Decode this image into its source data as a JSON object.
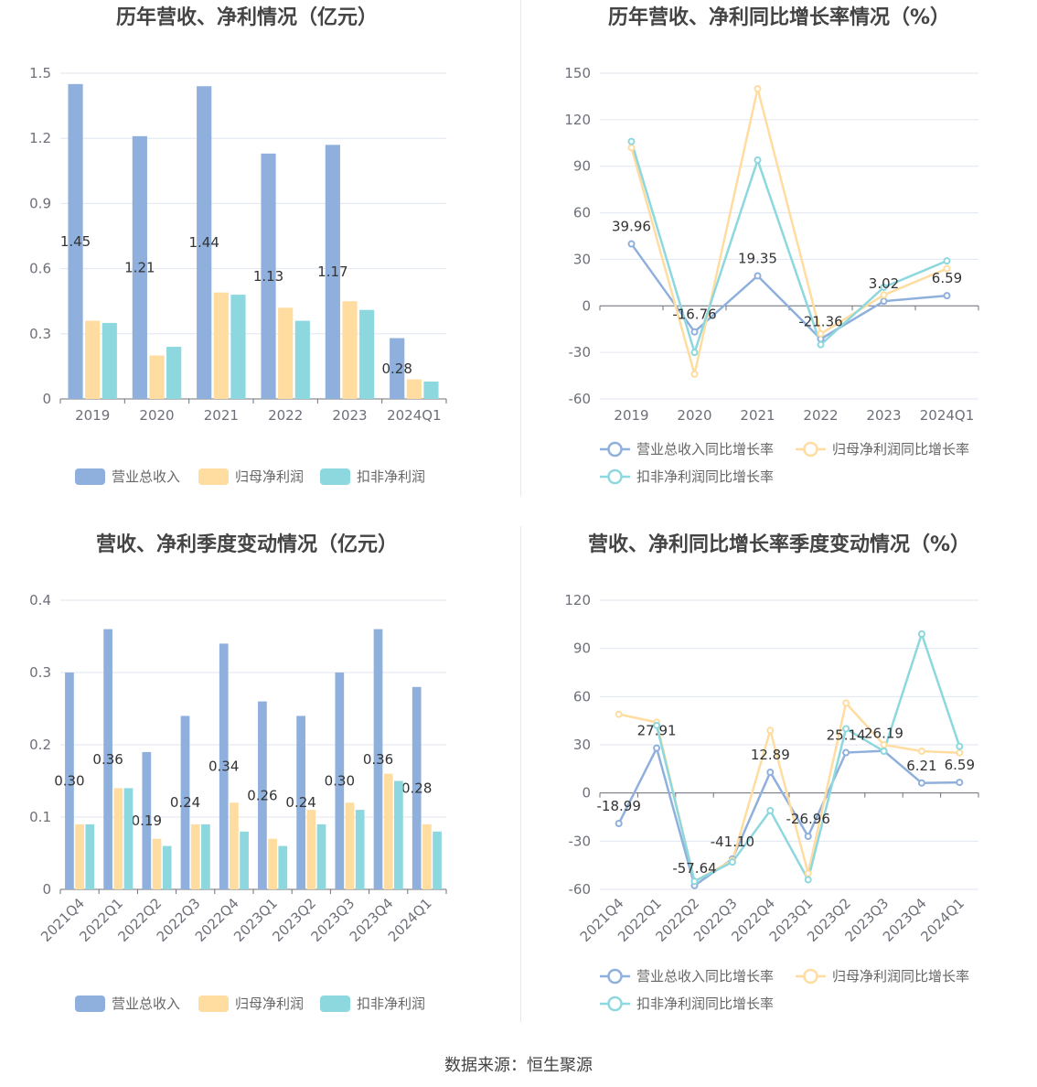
{
  "source": "数据来源：恒生聚源",
  "colors": {
    "revenue": "#8fb0dc",
    "netprofit": "#ffdca0",
    "deducted": "#8dd8de"
  },
  "chart_data": [
    {
      "id": "annual_bar",
      "type": "bar",
      "title": "历年营收、净利情况（亿元）",
      "categories": [
        "2019",
        "2020",
        "2021",
        "2022",
        "2023",
        "2024Q1"
      ],
      "ylim": [
        0,
        1.5
      ],
      "yticks": [
        "0",
        "0.3",
        "0.6",
        "0.9",
        "1.2",
        "1.5"
      ],
      "legend_position": "bottom",
      "series": [
        {
          "name": "营业总收入",
          "values": [
            1.45,
            1.21,
            1.44,
            1.13,
            1.17,
            0.28
          ],
          "labels": [
            "1.45",
            "1.21",
            "1.44",
            "1.13",
            "1.17",
            "0.28"
          ]
        },
        {
          "name": "归母净利润",
          "values": [
            0.36,
            0.2,
            0.49,
            0.42,
            0.45,
            0.09
          ]
        },
        {
          "name": "扣非净利润",
          "values": [
            0.35,
            0.24,
            0.48,
            0.36,
            0.41,
            0.08
          ]
        }
      ]
    },
    {
      "id": "annual_line",
      "type": "line",
      "title": "历年营收、净利同比增长率情况（%）",
      "categories": [
        "2019",
        "2020",
        "2021",
        "2022",
        "2023",
        "2024Q1"
      ],
      "ylim": [
        -60,
        150
      ],
      "yticks": [
        "-60",
        "-30",
        "0",
        "30",
        "60",
        "90",
        "120",
        "150"
      ],
      "legend_position": "bottom",
      "series": [
        {
          "name": "营业总收入同比增长率",
          "values": [
            39.96,
            -16.76,
            19.35,
            -21.36,
            3.02,
            6.59
          ],
          "labels": [
            "39.96",
            "-16.76",
            "19.35",
            "-21.36",
            "3.02",
            "6.59"
          ]
        },
        {
          "name": "归母净利润同比增长率",
          "values": [
            102,
            -44,
            140,
            -18,
            7,
            24
          ]
        },
        {
          "name": "扣非净利润同比增长率",
          "values": [
            106,
            -30,
            94,
            -25,
            12,
            29
          ]
        }
      ]
    },
    {
      "id": "quarter_bar",
      "type": "bar",
      "title": "营收、净利季度变动情况（亿元）",
      "categories": [
        "2021Q4",
        "2022Q1",
        "2022Q2",
        "2022Q3",
        "2022Q4",
        "2023Q1",
        "2023Q2",
        "2023Q3",
        "2023Q4",
        "2024Q1"
      ],
      "ylim": [
        0,
        0.4
      ],
      "yticks": [
        "0",
        "0.1",
        "0.2",
        "0.3",
        "0.4"
      ],
      "legend_position": "bottom",
      "series": [
        {
          "name": "营业总收入",
          "values": [
            0.3,
            0.36,
            0.19,
            0.24,
            0.34,
            0.26,
            0.24,
            0.3,
            0.36,
            0.28
          ],
          "labels": [
            "0.30",
            "0.36",
            "0.19",
            "0.24",
            "0.34",
            "0.26",
            "0.24",
            "0.30",
            "0.36",
            "0.28"
          ]
        },
        {
          "name": "归母净利润",
          "values": [
            0.09,
            0.14,
            0.07,
            0.09,
            0.12,
            0.07,
            0.11,
            0.12,
            0.16,
            0.09
          ]
        },
        {
          "name": "扣非净利润",
          "values": [
            0.09,
            0.14,
            0.06,
            0.09,
            0.08,
            0.06,
            0.09,
            0.11,
            0.15,
            0.08
          ]
        }
      ]
    },
    {
      "id": "quarter_line",
      "type": "line",
      "title": "营收、净利同比增长率季度变动情况（%）",
      "categories": [
        "2021Q4",
        "2022Q1",
        "2022Q2",
        "2022Q3",
        "2022Q4",
        "2023Q1",
        "2023Q2",
        "2023Q3",
        "2023Q4",
        "2024Q1"
      ],
      "ylim": [
        -60,
        120
      ],
      "yticks": [
        "-60",
        "-30",
        "0",
        "30",
        "60",
        "90",
        "120"
      ],
      "legend_position": "bottom",
      "series": [
        {
          "name": "营业总收入同比增长率",
          "values": [
            -18.99,
            27.91,
            -57.64,
            -41.1,
            12.89,
            -26.96,
            25.14,
            26.19,
            6.21,
            6.59
          ],
          "labels": [
            "-18.99",
            "27.91",
            "-57.64",
            "-41.10",
            "12.89",
            "-26.96",
            "25.14",
            "26.19",
            "6.21",
            "6.59"
          ]
        },
        {
          "name": "归母净利润同比增长率",
          "values": [
            49,
            44,
            -55,
            -42,
            39,
            -50,
            56,
            30,
            26,
            25
          ]
        },
        {
          "name": "扣非净利润同比增长率",
          "values": [
            null,
            42,
            -55,
            -43,
            -11,
            -54,
            40,
            26,
            99,
            29
          ]
        }
      ]
    }
  ]
}
